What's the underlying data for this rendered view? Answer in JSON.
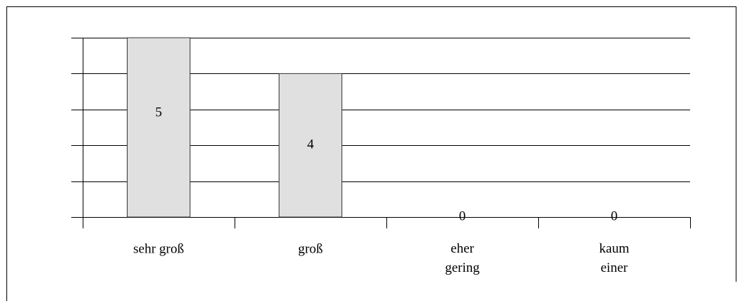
{
  "chart_data": {
    "type": "bar",
    "categories": [
      "sehr groß",
      "groß",
      "eher\ngering",
      "kaum\neiner"
    ],
    "values": [
      5,
      4,
      0,
      0
    ],
    "color": "#e0e0e0",
    "ylim": [
      0,
      5
    ],
    "yticks": [
      0,
      1,
      2,
      3,
      4,
      5
    ],
    "grid": true
  }
}
